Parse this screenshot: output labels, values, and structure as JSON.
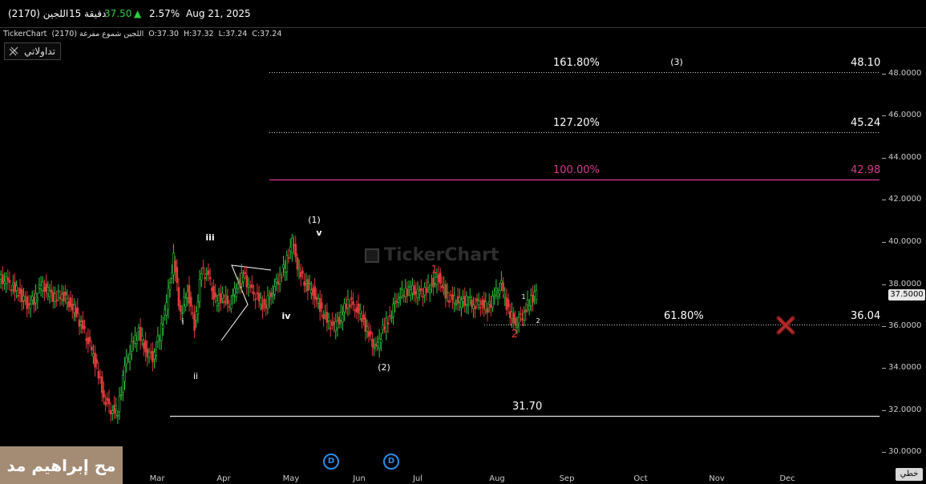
{
  "header": {
    "symbol": "(2170) اللجين",
    "interval": "15 دقيقة",
    "price": "37.50",
    "change_pct": "2.57%",
    "date": "Aug 21, 2025",
    "price_color": "#2ecc40",
    "arrow_color": "#2ecc40"
  },
  "subheader": {
    "source": "TickerChart",
    "series_desc": "(2170) اللجين شموع مفرغة",
    "open": "O:37.30",
    "high": "H:37.32",
    "low": "L:37.24",
    "close": "C:37.24"
  },
  "toolbar": {
    "my_tools_label": "تداولاتي",
    "linear_label": "خطي"
  },
  "watermark_text": "مح إبراهيم مد",
  "logo_text": "TickerChart",
  "price_axis": {
    "ticks": [
      "48.0000",
      "46.0000",
      "44.0000",
      "42.0000",
      "40.0000",
      "38.0000",
      "36.0000",
      "34.0000",
      "32.0000",
      "30.0000"
    ],
    "last_price": "37.5000"
  },
  "time_axis": {
    "labels": [
      "Mar",
      "Apr",
      "May",
      "Jun",
      "Jul",
      "Aug",
      "Sep",
      "Oct",
      "Nov",
      "Dec"
    ]
  },
  "dividend_marker_label": "D",
  "fib_levels": [
    {
      "pct": "161.80%",
      "value": "48.10",
      "color": "#ffffff"
    },
    {
      "pct": "127.20%",
      "value": "45.24",
      "color": "#ffffff"
    },
    {
      "pct": "100.00%",
      "value": "42.98",
      "color": "#d63a8c"
    },
    {
      "pct": "61.80%",
      "value": "36.04",
      "color": "#ffffff"
    }
  ],
  "support_label": "31.70",
  "wave_labels": {
    "w3_major": "(3)",
    "w1_major": "(1)",
    "w2_major": "(2)",
    "i": "i",
    "ii": "ii",
    "iii": "iii",
    "iv": "iv",
    "v": "v",
    "red1": "1",
    "red2": "2",
    "small1": "1",
    "small2": "2"
  },
  "chart_data": {
    "type": "line",
    "title": "",
    "xlabel": "",
    "ylabel": "",
    "ylim": [
      29.5,
      49.5
    ],
    "x_labels": [
      "Mar",
      "Apr",
      "May",
      "Jun",
      "Jul",
      "Aug",
      "Sep",
      "Oct",
      "Nov",
      "Dec"
    ],
    "series": [
      {
        "values": [
          38.2,
          38.1,
          37.8,
          37.5,
          37.0,
          37.2,
          37.9,
          37.6,
          37.3,
          37.5,
          37.1,
          36.6,
          35.8,
          35.0,
          34.0,
          32.6,
          32.0,
          31.9,
          34.0,
          35.0,
          35.7,
          34.8,
          34.5,
          35.5,
          37.0,
          39.2,
          36.5,
          37.7,
          36.0,
          38.6,
          38.3,
          37.1,
          37.4,
          37.0,
          37.8,
          38.4,
          37.7,
          37.3,
          36.9,
          37.5,
          38.2,
          38.8,
          40.0,
          38.5,
          38.0,
          37.6,
          36.9,
          36.2,
          35.9,
          36.4,
          37.2,
          36.9,
          36.4,
          35.5,
          34.8,
          35.8,
          36.4,
          37.3,
          37.6,
          37.7,
          37.5,
          37.6,
          38.0,
          38.3,
          37.5,
          37.2,
          37.1,
          37.2,
          37.0,
          37.1,
          36.8,
          37.4,
          37.9,
          36.7,
          36.1,
          36.5,
          37.1,
          37.6
        ]
      }
    ],
    "annotations": {
      "fib_161_8": 48.1,
      "fib_127_2": 45.24,
      "fib_100": 42.98,
      "fib_61_8": 36.04,
      "support": 31.7,
      "last_price": 37.5
    },
    "colors": {
      "up": "#2ecc40",
      "down": "#e03a3a",
      "fib100": "#d63a8c"
    }
  }
}
